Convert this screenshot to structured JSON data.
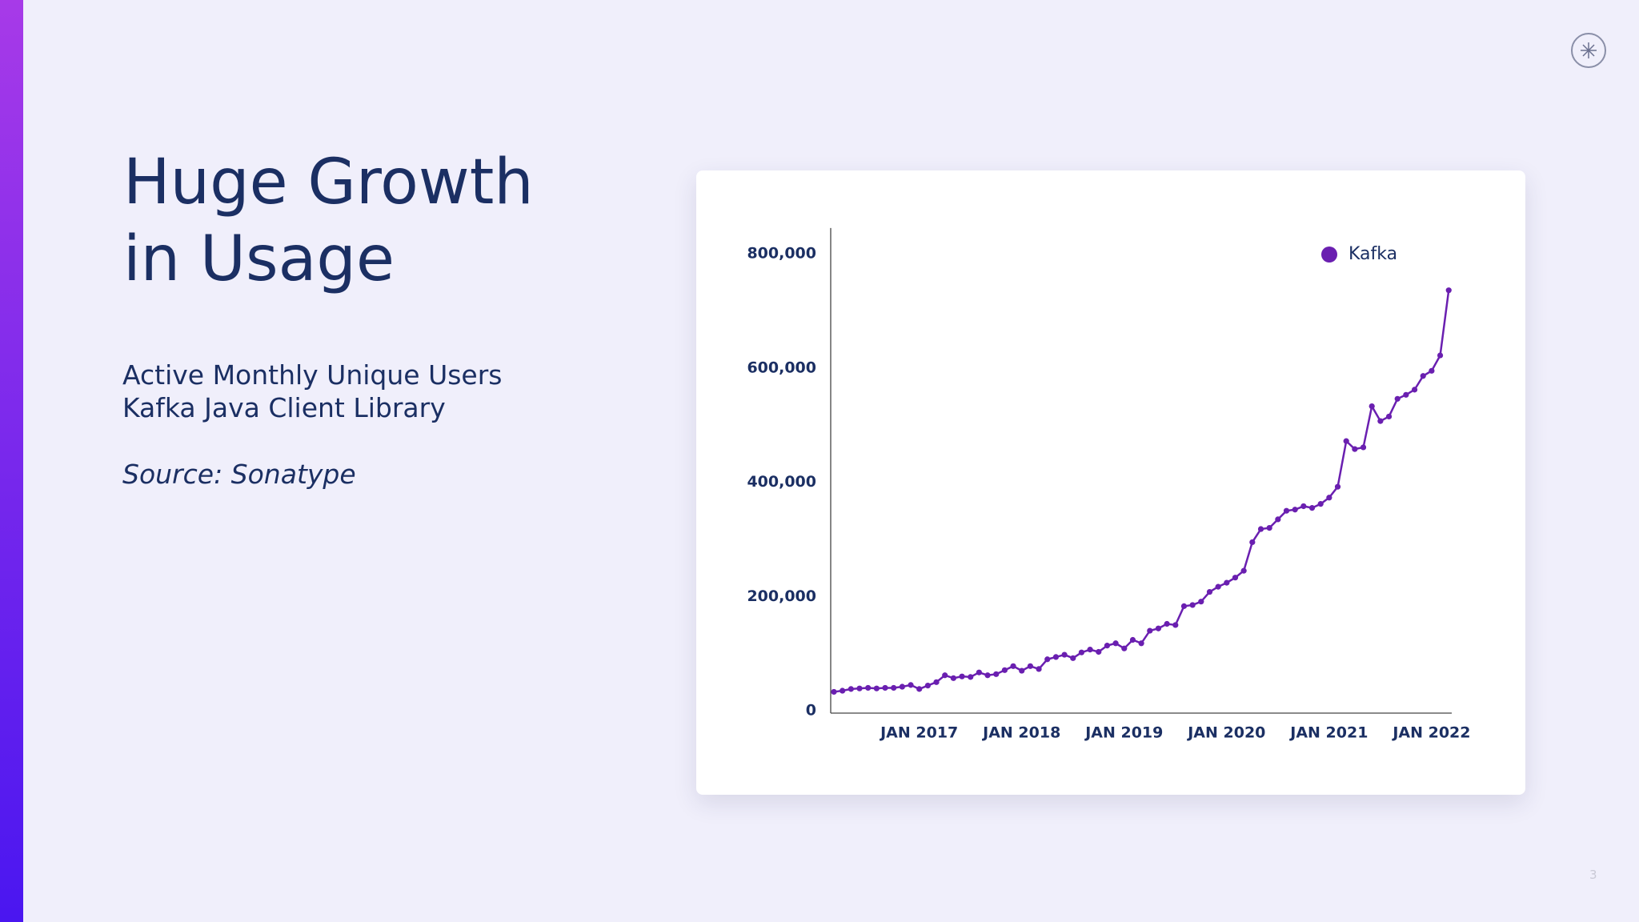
{
  "slide": {
    "title_lines": [
      "Huge Growth",
      "in Usage"
    ],
    "subtitle_lines": [
      "Active Monthly Unique Users",
      "Kafka Java Client Library"
    ],
    "source": "Source: Sonatype",
    "page_number": "3"
  },
  "chart_data": {
    "type": "line",
    "x": [
      "2016-03",
      "2016-04",
      "2016-05",
      "2016-06",
      "2016-07",
      "2016-08",
      "2016-09",
      "2016-10",
      "2016-11",
      "2016-12",
      "2017-01",
      "2017-02",
      "2017-03",
      "2017-04",
      "2017-05",
      "2017-06",
      "2017-07",
      "2017-08",
      "2017-09",
      "2017-10",
      "2017-11",
      "2017-12",
      "2018-01",
      "2018-02",
      "2018-03",
      "2018-04",
      "2018-05",
      "2018-06",
      "2018-07",
      "2018-08",
      "2018-09",
      "2018-10",
      "2018-11",
      "2018-12",
      "2019-01",
      "2019-02",
      "2019-03",
      "2019-04",
      "2019-05",
      "2019-06",
      "2019-07",
      "2019-08",
      "2019-09",
      "2019-10",
      "2019-11",
      "2019-12",
      "2020-01",
      "2020-02",
      "2020-03",
      "2020-04",
      "2020-05",
      "2020-06",
      "2020-07",
      "2020-08",
      "2020-09",
      "2020-10",
      "2020-11",
      "2020-12",
      "2021-01",
      "2021-02",
      "2021-03",
      "2021-04",
      "2021-05",
      "2021-06",
      "2021-07",
      "2021-08",
      "2021-09",
      "2021-10",
      "2021-11",
      "2021-12",
      "2022-01",
      "2022-02",
      "2022-03"
    ],
    "series": [
      {
        "name": "Kafka",
        "color": "#6a1fb0",
        "values": [
          33000,
          35000,
          38000,
          39000,
          40000,
          39000,
          40000,
          40000,
          42000,
          45000,
          38000,
          44000,
          50000,
          62000,
          57000,
          60000,
          59000,
          67000,
          62000,
          64000,
          71000,
          78000,
          70000,
          78000,
          73000,
          90000,
          94000,
          98000,
          92000,
          102000,
          107000,
          103000,
          114000,
          118000,
          109000,
          124000,
          118000,
          140000,
          144000,
          152000,
          150000,
          183000,
          185000,
          191000,
          208000,
          217000,
          224000,
          233000,
          245000,
          295000,
          318000,
          320000,
          335000,
          350000,
          352000,
          358000,
          355000,
          362000,
          373000,
          392000,
          472000,
          458000,
          461000,
          533000,
          507000,
          515000,
          546000,
          553000,
          562000,
          586000,
          595000,
          622000,
          736000
        ]
      }
    ],
    "ylim": [
      0,
      845000
    ],
    "yticks": [
      0,
      {
        "value": 200000,
        "label": "200,000"
      },
      {
        "value": 400000,
        "label": "400,000"
      },
      {
        "value": 600000,
        "label": "600,000"
      },
      {
        "value": 800000,
        "label": "800,000"
      }
    ],
    "xticks": [
      {
        "value": "2017-01",
        "label": "JAN 2017"
      },
      {
        "value": "2018-01",
        "label": "JAN 2018"
      },
      {
        "value": "2019-01",
        "label": "JAN 2019"
      },
      {
        "value": "2020-01",
        "label": "JAN 2020"
      },
      {
        "value": "2021-01",
        "label": "JAN 2021"
      },
      {
        "value": "2022-01",
        "label": "JAN 2022"
      }
    ],
    "grid": false,
    "legend": "top-right"
  }
}
